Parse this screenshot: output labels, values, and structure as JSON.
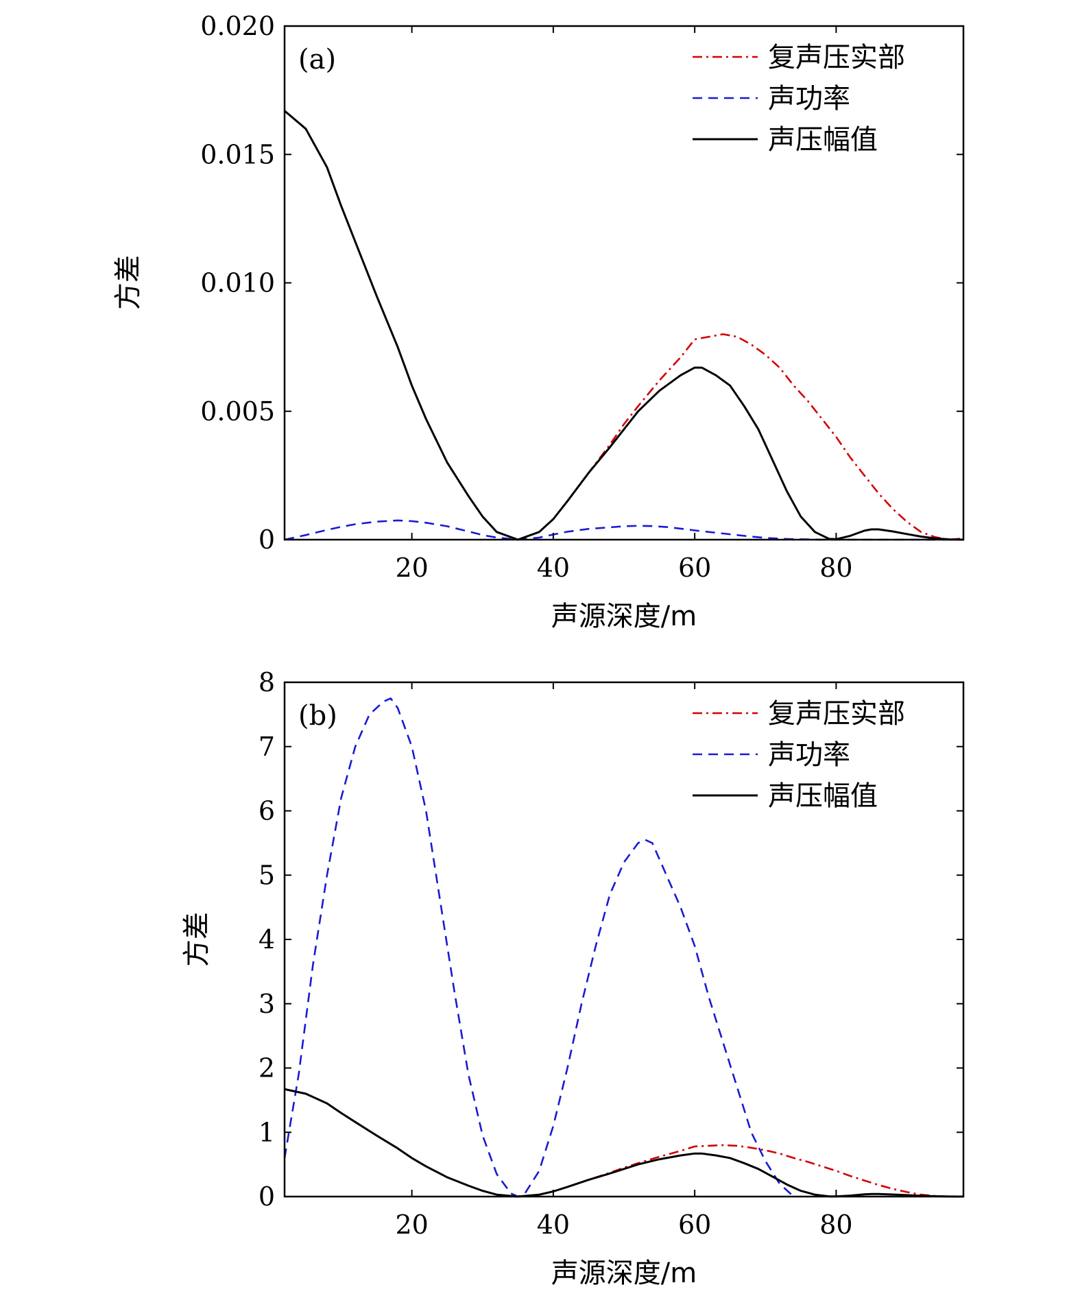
{
  "colors": {
    "real_part": "#d40000",
    "power": "#1a1ad4",
    "amplitude": "#000000"
  },
  "chart_data": [
    {
      "type": "line",
      "panel_label": "(a)",
      "xlabel": "声源深度/m",
      "ylabel": "方差",
      "xlim": [
        2,
        98
      ],
      "ylim": [
        0,
        0.02
      ],
      "xticks": [
        20,
        40,
        60,
        80
      ],
      "xtick_labels": [
        "20",
        "40",
        "60",
        "80"
      ],
      "yticks": [
        0,
        0.005,
        0.01,
        0.015,
        0.02
      ],
      "ytick_labels": [
        "0",
        "0.005",
        "0.010",
        "0.015",
        "0.020"
      ],
      "legend_position": "top-right",
      "series": [
        {
          "name": "复声压实部",
          "style": "dash-dot",
          "color": "#d40000",
          "x": [
            2,
            5,
            8,
            10,
            12,
            15,
            18,
            20,
            22,
            25,
            28,
            30,
            32,
            35,
            38,
            40,
            42,
            45,
            48,
            50,
            52,
            55,
            58,
            60,
            62,
            64,
            66,
            68,
            70,
            72,
            74,
            76,
            78,
            80,
            82,
            84,
            86,
            88,
            90,
            92,
            94,
            96,
            98
          ],
          "y": [
            0.0167,
            0.016,
            0.0145,
            0.013,
            0.0116,
            0.0095,
            0.0075,
            0.006,
            0.0047,
            0.003,
            0.0017,
            0.0009,
            0.0003,
            0.0,
            0.0003,
            0.0008,
            0.0015,
            0.0026,
            0.0037,
            0.0045,
            0.0052,
            0.0062,
            0.0071,
            0.0078,
            0.0079,
            0.008,
            0.0079,
            0.0076,
            0.0072,
            0.0067,
            0.006,
            0.0054,
            0.0047,
            0.004,
            0.0032,
            0.0025,
            0.0018,
            0.0012,
            0.0007,
            0.0003,
            0.0001,
            0.0,
            5e-05
          ]
        },
        {
          "name": "声功率",
          "style": "dashed",
          "color": "#1a1ad4",
          "x": [
            2,
            5,
            8,
            10,
            12,
            15,
            18,
            20,
            22,
            25,
            28,
            30,
            32,
            35,
            38,
            40,
            42,
            45,
            48,
            50,
            52,
            54,
            56,
            58,
            60,
            62,
            64,
            66,
            68,
            70,
            72,
            74,
            76,
            78,
            80,
            85,
            90,
            95,
            98
          ],
          "y": [
            0.0,
            0.00018,
            0.00038,
            0.0005,
            0.0006,
            0.0007,
            0.00075,
            0.00072,
            0.00066,
            0.00052,
            0.00032,
            0.00018,
            8e-05,
            0.0,
            8e-05,
            0.0002,
            0.00031,
            0.00042,
            0.00048,
            0.00052,
            0.00054,
            0.00053,
            0.00049,
            0.00043,
            0.00036,
            0.0003,
            0.00024,
            0.00018,
            0.00012,
            7e-05,
            4e-05,
            2e-05,
            1e-05,
            0.0,
            0.0,
            0.0,
            0.0,
            0.0,
            0.0
          ]
        },
        {
          "name": "声压幅值",
          "style": "solid",
          "color": "#000000",
          "x": [
            2,
            5,
            8,
            10,
            12,
            15,
            18,
            20,
            22,
            25,
            28,
            30,
            32,
            35,
            38,
            40,
            42,
            45,
            48,
            50,
            52,
            55,
            58,
            60,
            61,
            63,
            65,
            67,
            69,
            71,
            73,
            75,
            77,
            79,
            80,
            82,
            84,
            85,
            86,
            88,
            90,
            92,
            94,
            96,
            98
          ],
          "y": [
            0.0167,
            0.016,
            0.0145,
            0.013,
            0.0116,
            0.0095,
            0.0075,
            0.006,
            0.0047,
            0.003,
            0.0017,
            0.0009,
            0.0003,
            0.0,
            0.0003,
            0.0008,
            0.0015,
            0.0026,
            0.0036,
            0.0043,
            0.005,
            0.0058,
            0.0064,
            0.0067,
            0.0067,
            0.0064,
            0.006,
            0.0052,
            0.0043,
            0.0031,
            0.0019,
            0.0009,
            0.0003,
            3e-05,
            2e-05,
            0.00015,
            0.00035,
            0.0004,
            0.0004,
            0.00032,
            0.00022,
            0.00012,
            5e-05,
            1e-05,
            0.0
          ]
        }
      ]
    },
    {
      "type": "line",
      "panel_label": "(b)",
      "xlabel": "声源深度/m",
      "ylabel": "方差",
      "xlim": [
        2,
        98
      ],
      "ylim": [
        0,
        8
      ],
      "xticks": [
        20,
        40,
        60,
        80
      ],
      "xtick_labels": [
        "20",
        "40",
        "60",
        "80"
      ],
      "yticks": [
        0,
        1,
        2,
        3,
        4,
        5,
        6,
        7,
        8
      ],
      "ytick_labels": [
        "0",
        "1",
        "2",
        "3",
        "4",
        "5",
        "6",
        "7",
        "8"
      ],
      "legend_position": "top-right",
      "series": [
        {
          "name": "复声压实部",
          "style": "dash-dot",
          "color": "#d40000",
          "x": [
            2,
            5,
            8,
            10,
            12,
            15,
            18,
            20,
            22,
            25,
            28,
            30,
            32,
            35,
            38,
            40,
            42,
            45,
            48,
            50,
            52,
            55,
            58,
            60,
            62,
            64,
            66,
            68,
            70,
            72,
            74,
            76,
            78,
            80,
            82,
            84,
            86,
            88,
            90,
            92,
            94,
            96,
            98
          ],
          "y": [
            1.67,
            1.6,
            1.45,
            1.3,
            1.16,
            0.95,
            0.75,
            0.6,
            0.47,
            0.3,
            0.17,
            0.09,
            0.03,
            0.0,
            0.03,
            0.08,
            0.15,
            0.26,
            0.37,
            0.45,
            0.52,
            0.62,
            0.71,
            0.78,
            0.79,
            0.8,
            0.79,
            0.76,
            0.72,
            0.67,
            0.6,
            0.54,
            0.47,
            0.4,
            0.32,
            0.25,
            0.18,
            0.12,
            0.07,
            0.03,
            0.01,
            0.0,
            0.0
          ]
        },
        {
          "name": "声功率",
          "style": "dashed",
          "color": "#1a1ad4",
          "x": [
            2,
            4,
            6,
            8,
            10,
            12,
            14,
            16,
            17,
            18,
            20,
            22,
            24,
            26,
            28,
            30,
            32,
            34,
            35,
            36,
            38,
            40,
            42,
            44,
            46,
            48,
            50,
            52,
            53,
            54,
            56,
            58,
            60,
            62,
            64,
            66,
            68,
            70,
            72,
            74
          ],
          "y": [
            0.6,
            1.9,
            3.6,
            5.0,
            6.2,
            7.0,
            7.5,
            7.7,
            7.75,
            7.6,
            7.0,
            6.0,
            4.6,
            3.2,
            1.9,
            0.95,
            0.35,
            0.05,
            0.0,
            0.05,
            0.4,
            1.1,
            2.0,
            3.0,
            3.9,
            4.7,
            5.2,
            5.5,
            5.55,
            5.5,
            5.0,
            4.5,
            3.9,
            3.1,
            2.4,
            1.7,
            1.0,
            0.55,
            0.2,
            0.0
          ]
        },
        {
          "name": "声压幅值",
          "style": "solid",
          "color": "#000000",
          "x": [
            2,
            5,
            8,
            10,
            12,
            15,
            18,
            20,
            22,
            25,
            28,
            30,
            32,
            35,
            38,
            40,
            42,
            45,
            48,
            50,
            52,
            55,
            58,
            60,
            61,
            63,
            65,
            67,
            69,
            71,
            73,
            75,
            77,
            79,
            80,
            82,
            84,
            85,
            86,
            88,
            90,
            92,
            94,
            96,
            98
          ],
          "y": [
            1.67,
            1.6,
            1.45,
            1.3,
            1.16,
            0.95,
            0.75,
            0.6,
            0.47,
            0.3,
            0.17,
            0.09,
            0.03,
            0.0,
            0.03,
            0.08,
            0.15,
            0.26,
            0.36,
            0.43,
            0.5,
            0.58,
            0.64,
            0.67,
            0.67,
            0.64,
            0.6,
            0.52,
            0.43,
            0.31,
            0.19,
            0.09,
            0.03,
            0.003,
            0.002,
            0.015,
            0.035,
            0.04,
            0.04,
            0.032,
            0.022,
            0.012,
            0.005,
            0.001,
            0.0
          ]
        }
      ]
    }
  ]
}
